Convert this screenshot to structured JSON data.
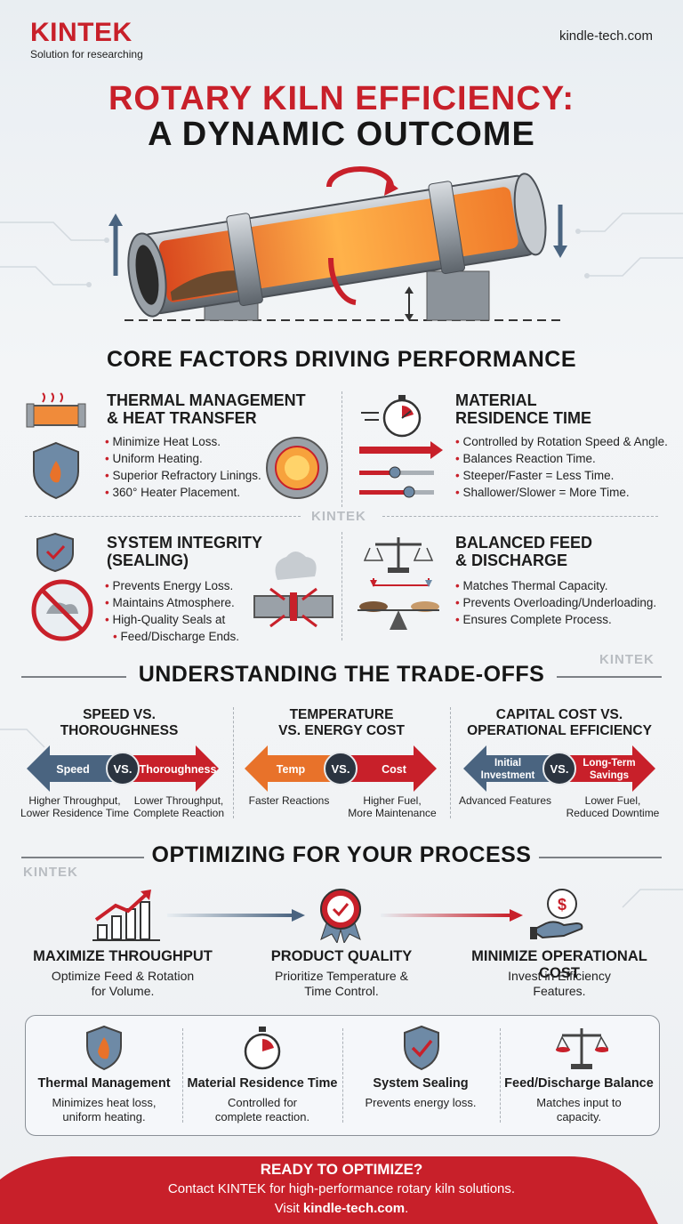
{
  "brand": {
    "name": "KINTEK",
    "tagline": "Solution for researching",
    "website": "kindle-tech.com"
  },
  "title": {
    "line1": "ROTARY KILN EFFICIENCY:",
    "line2": "A DYNAMIC OUTCOME"
  },
  "watermark": "KINTEK",
  "core": {
    "title": "CORE FACTORS DRIVING PERFORMANCE",
    "factors": [
      {
        "title_l1": "THERMAL MANAGEMENT",
        "title_l2": "& HEAT TRANSFER",
        "bullets": [
          "Minimize Heat Loss.",
          "Uniform Heating.",
          "Superior Refractory Linings.",
          "360° Heater Placement."
        ]
      },
      {
        "title_l1": "MATERIAL",
        "title_l2": "RESIDENCE TIME",
        "bullets": [
          "Controlled by Rotation Speed & Angle.",
          "Balances Reaction Time.",
          "Steeper/Faster = Less Time.",
          "Shallower/Slower = More Time."
        ]
      },
      {
        "title_l1": "SYSTEM INTEGRITY",
        "title_l2": "(SEALING)",
        "bullets": [
          "Prevents Energy Loss.",
          "Maintains Atmosphere.",
          "High-Quality Seals at",
          "Feed/Discharge Ends."
        ]
      },
      {
        "title_l1": "BALANCED FEED",
        "title_l2": "& DISCHARGE",
        "bullets": [
          "Matches Thermal Capacity.",
          "Prevents Overloading/Underloading.",
          "Ensures Complete Process."
        ]
      }
    ]
  },
  "tradeoffs": {
    "title": "UNDERSTANDING THE TRADE-OFFS",
    "vs": "VS.",
    "items": [
      {
        "title_l1": "SPEED VS.",
        "title_l2": "THOROUGHNESS",
        "left": "Speed",
        "right": "Thoroughness",
        "left_cap_l1": "Higher Throughput,",
        "left_cap_l2": "Lower Residence Time",
        "right_cap_l1": "Lower Throughput,",
        "right_cap_l2": "Complete Reaction"
      },
      {
        "title_l1": "TEMPERATURE",
        "title_l2": "VS. ENERGY COST",
        "left": "Temp",
        "right": "Cost",
        "left_cap_l1": "Faster Reactions",
        "left_cap_l2": "",
        "right_cap_l1": "Higher Fuel,",
        "right_cap_l2": "More Maintenance"
      },
      {
        "title_l1": "CAPITAL COST VS.",
        "title_l2": "OPERATIONAL EFFICIENCY",
        "left_l1": "Initial",
        "left_l2": "Investment",
        "right_l1": "Long-Term",
        "right_l2": "Savings",
        "left_cap_l1": "Advanced Features",
        "left_cap_l2": "",
        "right_cap_l1": "Lower Fuel,",
        "right_cap_l2": "Reduced Downtime"
      }
    ]
  },
  "optimize": {
    "title": "OPTIMIZING FOR YOUR PROCESS",
    "items": [
      {
        "title": "MAXIMIZE THROUGHPUT",
        "text_l1": "Optimize Feed & Rotation",
        "text_l2": "for Volume."
      },
      {
        "title": "PRODUCT QUALITY",
        "text_l1": "Prioritize Temperature &",
        "text_l2": "Time Control."
      },
      {
        "title": "MINIMIZE OPERATIONAL COST",
        "text_l1": "Invest in Efficiency",
        "text_l2": "Features."
      }
    ]
  },
  "summary": [
    {
      "title": "Thermal Management",
      "text_l1": "Minimizes heat loss,",
      "text_l2": "uniform heating."
    },
    {
      "title": "Material Residence Time",
      "text_l1": "Controlled for",
      "text_l2": "complete reaction."
    },
    {
      "title": "System Sealing",
      "text_l1": "Prevents energy loss.",
      "text_l2": ""
    },
    {
      "title": "Feed/Discharge Balance",
      "text_l1": "Matches input to",
      "text_l2": "capacity."
    }
  ],
  "footer": {
    "title": "READY TO OPTIMIZE?",
    "line1": "Contact KINTEK for high-performance rotary kiln solutions.",
    "line2_prefix": "Visit ",
    "line2_link": "kindle-tech.com",
    "line2_suffix": "."
  },
  "colors": {
    "brand_red": "#c8202a",
    "steel_blue": "#4a6480",
    "orange": "#e8722a",
    "dark": "#1c1c1c"
  }
}
